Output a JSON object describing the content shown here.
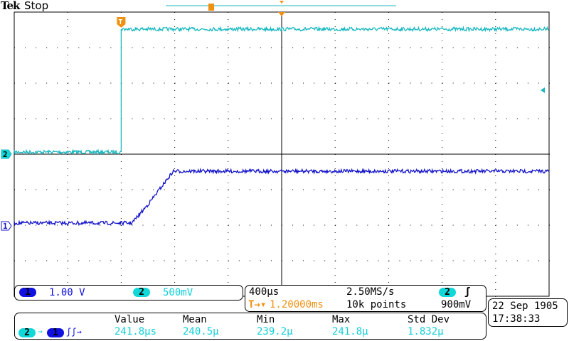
{
  "header": {
    "brand": "Tek",
    "status": "Stop"
  },
  "colors": {
    "ch1": "#1414c8",
    "ch2": "#18b8c0",
    "trigger": "#f09010",
    "grid": "#000000"
  },
  "channels": [
    {
      "id": "1",
      "scale": "1.00 V"
    },
    {
      "id": "2",
      "scale": "500mV"
    }
  ],
  "timebase": {
    "scale": "400µs",
    "trigger_pos": "1.20000ms",
    "sample_rate": "2.50MS/s",
    "record": "10k points",
    "trigger_source": "2",
    "trigger_slope": "rising",
    "trigger_level": "900mV"
  },
  "datetime": {
    "date": "22 Sep  1905",
    "time": "17:38:33"
  },
  "measurement": {
    "source": "2",
    "target": "1",
    "type": "delay rising-rising",
    "headers": [
      "Value",
      "Mean",
      "Min",
      "Max",
      "Std Dev"
    ],
    "values": [
      "241.8µs",
      "240.5µ",
      "239.2µ",
      "241.8µ",
      "1.832µ"
    ]
  },
  "chart_data": {
    "type": "line",
    "title": "",
    "xlabel": "",
    "ylabel": "",
    "x_unit": "ms",
    "xlim": [
      -0.8,
      3.2
    ],
    "grid": true,
    "divisions": {
      "x": 10,
      "y": 8
    },
    "series": [
      {
        "name": "2",
        "volts_per_div": 0.5,
        "points": [
          [
            -0.8,
            0.03
          ],
          [
            0.0,
            0.03
          ],
          [
            0.0,
            1.76
          ],
          [
            3.2,
            1.76
          ]
        ]
      },
      {
        "name": "1",
        "volts_per_div": 1.0,
        "points": [
          [
            -0.8,
            0.08
          ],
          [
            0.08,
            0.08
          ],
          [
            0.2,
            0.6
          ],
          [
            0.39,
            1.54
          ],
          [
            3.2,
            1.54
          ]
        ]
      }
    ]
  }
}
